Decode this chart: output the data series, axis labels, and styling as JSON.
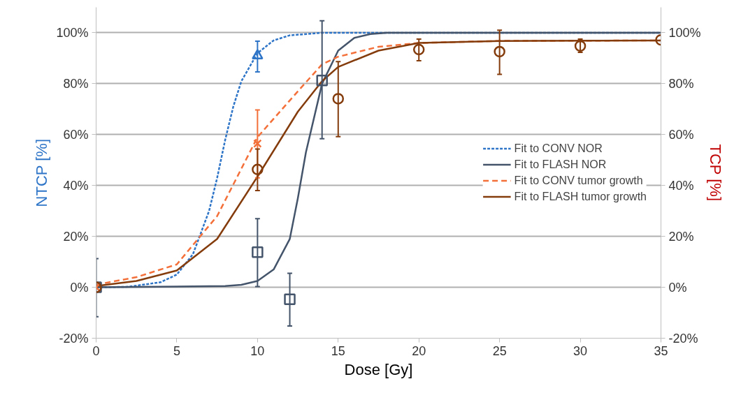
{
  "chart_data": {
    "type": "line",
    "xlabel": "Dose [Gy]",
    "ylabel": "NTCP [%]",
    "y2label": "TCP [%]",
    "xlim": [
      0,
      35
    ],
    "xticks": [
      0,
      5,
      10,
      15,
      20,
      25,
      30,
      35
    ],
    "ylim": [
      -20,
      110
    ],
    "yticks": [
      {
        "value": -20,
        "label": "-20%"
      },
      {
        "value": 0,
        "label": "0%"
      },
      {
        "value": 20,
        "label": "20%"
      },
      {
        "value": 40,
        "label": "40%"
      },
      {
        "value": 60,
        "label": "60%"
      },
      {
        "value": 80,
        "label": "80%"
      },
      {
        "value": 100,
        "label": "100%"
      }
    ],
    "y2lim": [
      -20,
      110
    ],
    "y2ticks": [
      {
        "value": -20,
        "label": "-20%"
      },
      {
        "value": 0,
        "label": "0%"
      },
      {
        "value": 20,
        "label": "20%"
      },
      {
        "value": 40,
        "label": "40%"
      },
      {
        "value": 60,
        "label": "60%"
      },
      {
        "value": 80,
        "label": "80%"
      },
      {
        "value": 100,
        "label": "100%"
      }
    ],
    "grid": "y",
    "legend": "right",
    "series": [
      {
        "name": "Fit to CONV NOR",
        "line_style": "dotted",
        "marker": "none",
        "color": "#2e75c8",
        "x": [
          0,
          2,
          4,
          5,
          6,
          7,
          7.5,
          8,
          8.5,
          9,
          10,
          11,
          12,
          14,
          20,
          35
        ],
        "values": [
          0,
          0.2,
          2,
          5,
          13,
          30,
          43,
          58,
          71,
          81,
          92,
          97,
          99,
          100,
          100,
          100
        ]
      },
      {
        "name": "Fit to FLASH NOR",
        "line_style": "solid",
        "marker": "none",
        "color": "#44546a",
        "x": [
          0,
          8,
          9,
          10,
          11,
          12,
          12.5,
          13,
          14,
          15,
          16,
          17,
          18,
          35
        ],
        "values": [
          0,
          0.5,
          1,
          2.5,
          7,
          19,
          35,
          53,
          80,
          93,
          98,
          99.5,
          100,
          100
        ]
      },
      {
        "name": "Fit to CONV tumor growth",
        "line_style": "dashed",
        "marker": "none",
        "color": "#f4703a",
        "x": [
          0,
          2.5,
          5,
          7.5,
          10,
          12.5,
          14,
          15,
          17.5,
          20,
          25,
          35
        ],
        "values": [
          1,
          4,
          9,
          28,
          59,
          77,
          87.6,
          90.6,
          94.5,
          96,
          96.8,
          97
        ]
      },
      {
        "name": "Fit to FLASH tumor growth",
        "line_style": "solid",
        "marker": "none",
        "color": "#843c0c",
        "x": [
          0,
          2.5,
          5,
          7.5,
          10,
          12.5,
          14,
          15,
          17.5,
          20,
          25,
          35
        ],
        "values": [
          0.5,
          2.5,
          6.6,
          19,
          43.5,
          69,
          81,
          86.6,
          93,
          96,
          96.8,
          97
        ]
      },
      {
        "type": "scatter",
        "marker": "triangle",
        "color": "#2e75c8",
        "x": [
          10
        ],
        "values": [
          91
        ],
        "errors": [
          [
            84.6,
            96.7
          ]
        ]
      },
      {
        "type": "scatter",
        "marker": "square",
        "color": "#44546a",
        "x": [
          0,
          10,
          12,
          14
        ],
        "values": [
          0,
          13.8,
          -4.7,
          81.3
        ],
        "errors": [
          [
            -11.6,
            11.3
          ],
          [
            0.3,
            27
          ],
          [
            -15.2,
            5.5
          ],
          [
            58.4,
            104.7
          ]
        ]
      },
      {
        "type": "scatter",
        "marker": "cross",
        "color": "#f4703a",
        "x": [
          0,
          10
        ],
        "values": [
          0,
          56.5
        ],
        "errors": [
          null,
          [
            43,
            69.7
          ]
        ]
      },
      {
        "type": "scatter",
        "marker": "circle",
        "color": "#843c0c",
        "x": [
          0,
          10,
          15,
          20,
          25,
          30,
          35
        ],
        "values": [
          0,
          46.3,
          74.1,
          93.4,
          92.6,
          94.8,
          97.2
        ],
        "errors": [
          null,
          [
            38,
            54.3
          ],
          [
            59.2,
            88.7
          ],
          [
            89,
            97.5
          ],
          [
            83.7,
            101
          ],
          [
            92.3,
            97.5
          ],
          null
        ]
      }
    ]
  }
}
